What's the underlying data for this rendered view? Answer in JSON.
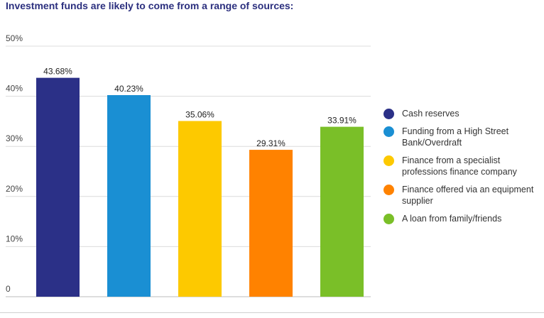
{
  "chart_data": {
    "type": "bar",
    "title": "Investment funds are likely to come from a range of sources:",
    "categories": [
      "Cash reserves",
      "Funding from a High Street Bank/Overdraft",
      "Finance from a specialist professions finance company",
      "Finance offered via an equipment supplier",
      "A loan from family/friends"
    ],
    "values": [
      43.68,
      40.23,
      35.06,
      29.31,
      33.91
    ],
    "data_labels": [
      "43.68%",
      "40.23%",
      "35.06%",
      "29.31%",
      "33.91%"
    ],
    "colors": [
      "#2b3087",
      "#1a8fd3",
      "#fdc900",
      "#ff8200",
      "#7abf28"
    ],
    "ylim": [
      0,
      50
    ],
    "yticks": [
      0,
      10,
      20,
      30,
      40,
      50
    ],
    "ytick_labels": [
      "0",
      "10%",
      "20%",
      "30%",
      "40%",
      "50%"
    ],
    "grid": true,
    "legend_placement": "right"
  }
}
